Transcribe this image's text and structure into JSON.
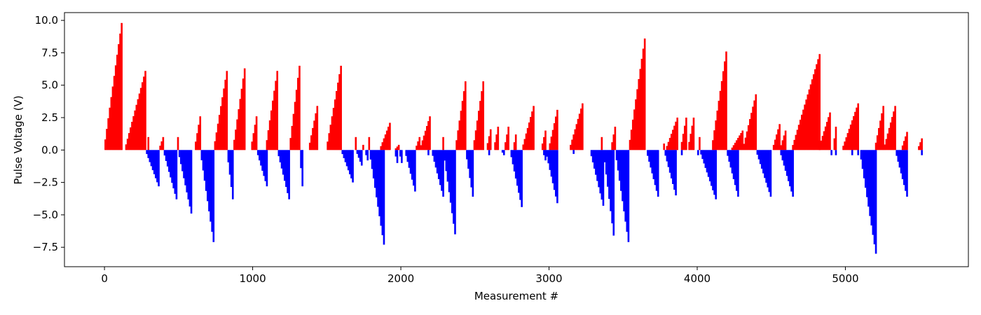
{
  "chart_data": {
    "type": "bar",
    "title": "",
    "xlabel": "Measurement #",
    "ylabel": "Pulse Voltage (V)",
    "xlim": [
      -270,
      5830
    ],
    "ylim": [
      -9.0,
      10.6
    ],
    "xticks": [
      0,
      1000,
      2000,
      3000,
      4000,
      5000
    ],
    "yticks": [
      -7.5,
      -5.0,
      -2.5,
      0.0,
      2.5,
      5.0,
      7.5,
      10.0
    ],
    "xtick_labels": [
      "0",
      "1000",
      "2000",
      "3000",
      "4000",
      "5000"
    ],
    "ytick_labels": [
      "−7.5",
      "−5.0",
      "−2.5",
      "0.0",
      "2.5",
      "5.0",
      "7.5",
      "10.0"
    ],
    "grid": false,
    "colors": {
      "positive": "#ff0000",
      "negative": "#0000ff"
    },
    "series": [
      {
        "color": "#ff0000",
        "ramps": [
          [
            0,
            120,
            9.8
          ],
          [
            140,
            280,
            6.1
          ],
          [
            290,
            295,
            1.0
          ],
          [
            370,
            400,
            1.0
          ],
          [
            490,
            495,
            1.0
          ],
          [
            610,
            650,
            2.6
          ],
          [
            740,
            830,
            6.1
          ],
          [
            870,
            950,
            6.3
          ],
          [
            990,
            1030,
            2.6
          ],
          [
            1090,
            1170,
            6.1
          ],
          [
            1250,
            1320,
            6.5
          ],
          [
            1380,
            1440,
            3.4
          ],
          [
            1500,
            1600,
            6.5
          ],
          [
            1690,
            1695,
            1.0
          ],
          [
            1740,
            1750,
            0.4
          ],
          [
            1780,
            1785,
            1.0
          ],
          [
            1860,
            1930,
            2.1
          ],
          [
            1960,
            1985,
            0.4
          ],
          [
            2100,
            2130,
            1.0
          ],
          [
            2130,
            2200,
            2.6
          ],
          [
            2280,
            2285,
            1.0
          ],
          [
            2370,
            2440,
            5.3
          ],
          [
            2490,
            2560,
            5.3
          ],
          [
            2580,
            2610,
            1.6
          ],
          [
            2630,
            2660,
            1.8
          ],
          [
            2700,
            2730,
            1.8
          ],
          [
            2760,
            2780,
            1.2
          ],
          [
            2820,
            2900,
            3.4
          ],
          [
            2950,
            2980,
            1.5
          ],
          [
            3000,
            3060,
            3.1
          ],
          [
            3140,
            3230,
            3.6
          ],
          [
            3350,
            3355,
            1.0
          ],
          [
            3420,
            3450,
            1.8
          ],
          [
            3540,
            3650,
            8.6
          ],
          [
            3770,
            3780,
            0.5
          ],
          [
            3790,
            3870,
            2.5
          ],
          [
            3890,
            3930,
            2.5
          ],
          [
            3940,
            3980,
            2.5
          ],
          [
            4010,
            4015,
            1.0
          ],
          [
            4100,
            4200,
            7.6
          ],
          [
            4230,
            4310,
            1.5
          ],
          [
            4310,
            4400,
            4.3
          ],
          [
            4510,
            4560,
            2.0
          ],
          [
            4560,
            4600,
            1.5
          ],
          [
            4640,
            4830,
            7.4
          ],
          [
            4820,
            4900,
            2.9
          ],
          [
            4920,
            4940,
            1.8
          ],
          [
            4980,
            5090,
            3.6
          ],
          [
            5040,
            5045,
            1.0
          ],
          [
            5080,
            5085,
            1.0
          ],
          [
            5200,
            5260,
            3.4
          ],
          [
            5260,
            5340,
            3.4
          ],
          [
            5380,
            5420,
            1.4
          ],
          [
            5490,
            5520,
            0.9
          ]
        ]
      },
      {
        "color": "#0000ff",
        "ramps": [
          [
            280,
            370,
            -2.8
          ],
          [
            400,
            490,
            -3.8
          ],
          [
            500,
            590,
            -4.9
          ],
          [
            650,
            740,
            -7.1
          ],
          [
            830,
            870,
            -3.8
          ],
          [
            1030,
            1100,
            -2.8
          ],
          [
            1170,
            1250,
            -3.8
          ],
          [
            1320,
            1340,
            -2.8
          ],
          [
            1600,
            1680,
            -2.5
          ],
          [
            1700,
            1740,
            -1.2
          ],
          [
            1760,
            1780,
            -0.8
          ],
          [
            1790,
            1890,
            -7.3
          ],
          [
            1960,
            1980,
            -1.0
          ],
          [
            1990,
            2010,
            -1.0
          ],
          [
            2030,
            2100,
            -3.2
          ],
          [
            2180,
            2190,
            -0.4
          ],
          [
            2210,
            2290,
            -3.6
          ],
          [
            2290,
            2370,
            -6.5
          ],
          [
            2440,
            2490,
            -3.6
          ],
          [
            2590,
            2600,
            -0.4
          ],
          [
            2680,
            2700,
            -0.4
          ],
          [
            2740,
            2820,
            -4.4
          ],
          [
            2960,
            2980,
            -0.8
          ],
          [
            2980,
            3060,
            -4.1
          ],
          [
            3160,
            3170,
            -0.3
          ],
          [
            3280,
            3370,
            -4.3
          ],
          [
            3370,
            3440,
            -6.6
          ],
          [
            3450,
            3540,
            -7.1
          ],
          [
            3660,
            3740,
            -3.6
          ],
          [
            3780,
            3860,
            -3.5
          ],
          [
            3890,
            3900,
            -0.4
          ],
          [
            4000,
            4010,
            -0.4
          ],
          [
            4020,
            4130,
            -3.8
          ],
          [
            4200,
            4280,
            -3.6
          ],
          [
            4400,
            4500,
            -3.6
          ],
          [
            4560,
            4650,
            -3.6
          ],
          [
            4900,
            4910,
            -0.4
          ],
          [
            4930,
            4940,
            -0.4
          ],
          [
            5040,
            5050,
            -0.4
          ],
          [
            5080,
            5090,
            -0.4
          ],
          [
            5100,
            5210,
            -8.0
          ],
          [
            5340,
            5420,
            -3.6
          ],
          [
            5510,
            5520,
            -0.4
          ]
        ]
      }
    ]
  }
}
